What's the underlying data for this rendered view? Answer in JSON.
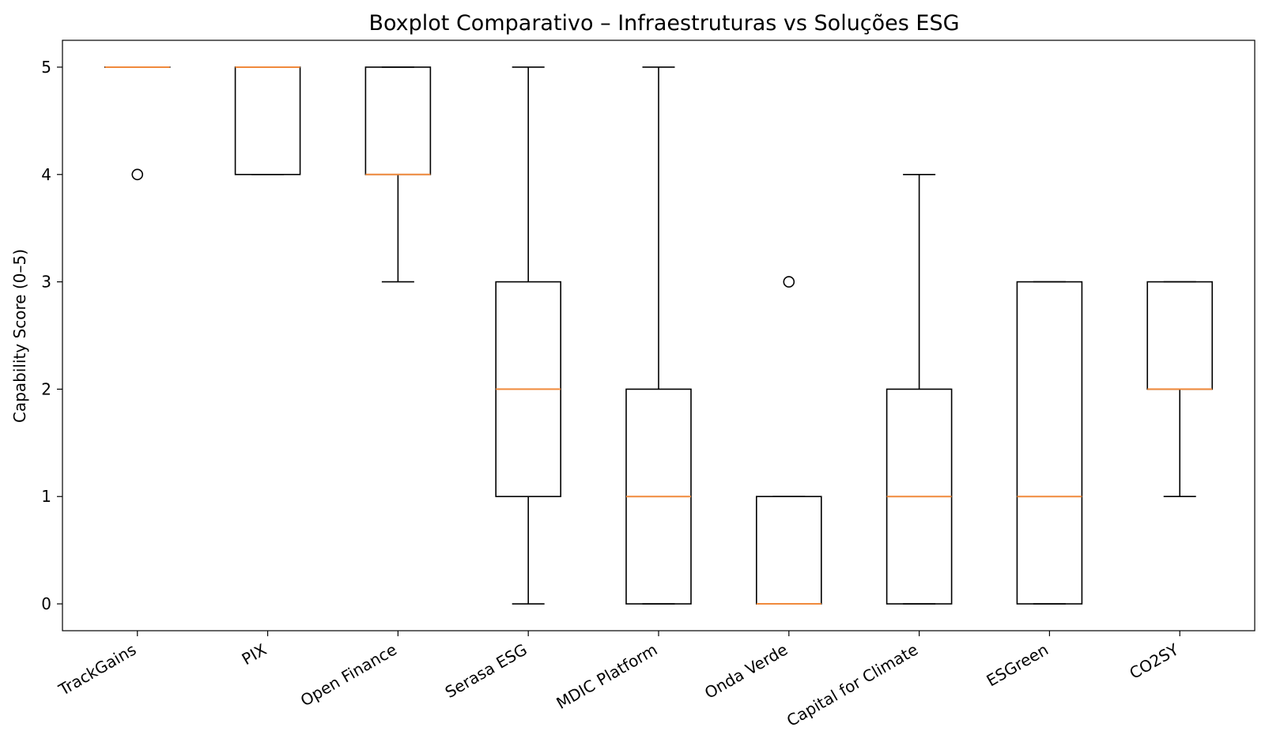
{
  "chart_data": {
    "type": "boxplot",
    "title": "Boxplot Comparativo – Infraestruturas vs Soluções ESG",
    "xlabel": "",
    "ylabel": "Capability Score (0–5)",
    "ylim": [
      -0.25,
      5.25
    ],
    "yticks": [
      "0",
      "1",
      "2",
      "3",
      "4",
      "5"
    ],
    "grid": false,
    "median_color": "#f08a3c",
    "categories": [
      "TrackGains",
      "PIX",
      "Open Finance",
      "Serasa ESG",
      "MDIC Platform",
      "Onda Verde",
      "Capital for Climate",
      "ESGreen",
      "CO2SY"
    ],
    "boxes": [
      {
        "whisker_low": 5,
        "q1": 5,
        "median": 5,
        "q3": 5,
        "whisker_high": 5,
        "fliers": [
          4
        ]
      },
      {
        "whisker_low": 4,
        "q1": 4,
        "median": 5,
        "q3": 5,
        "whisker_high": 5,
        "fliers": []
      },
      {
        "whisker_low": 3,
        "q1": 4,
        "median": 4,
        "q3": 5,
        "whisker_high": 5,
        "fliers": []
      },
      {
        "whisker_low": 0,
        "q1": 1,
        "median": 2,
        "q3": 3,
        "whisker_high": 5,
        "fliers": []
      },
      {
        "whisker_low": 0,
        "q1": 0,
        "median": 1,
        "q3": 2,
        "whisker_high": 5,
        "fliers": []
      },
      {
        "whisker_low": 0,
        "q1": 0,
        "median": 0,
        "q3": 1,
        "whisker_high": 1,
        "fliers": [
          3
        ]
      },
      {
        "whisker_low": 0,
        "q1": 0,
        "median": 1,
        "q3": 2,
        "whisker_high": 4,
        "fliers": []
      },
      {
        "whisker_low": 0,
        "q1": 0,
        "median": 1,
        "q3": 3,
        "whisker_high": 3,
        "fliers": []
      },
      {
        "whisker_low": 1,
        "q1": 2,
        "median": 2,
        "q3": 3,
        "whisker_high": 3,
        "fliers": []
      }
    ]
  }
}
